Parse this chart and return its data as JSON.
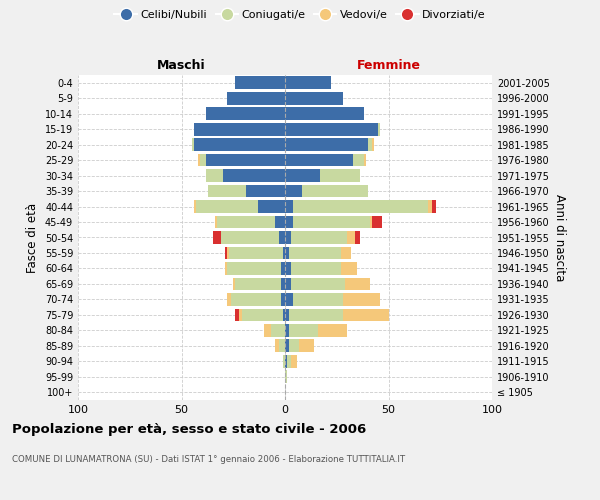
{
  "age_groups": [
    "100+",
    "95-99",
    "90-94",
    "85-89",
    "80-84",
    "75-79",
    "70-74",
    "65-69",
    "60-64",
    "55-59",
    "50-54",
    "45-49",
    "40-44",
    "35-39",
    "30-34",
    "25-29",
    "20-24",
    "15-19",
    "10-14",
    "5-9",
    "0-4"
  ],
  "birth_years": [
    "≤ 1905",
    "1906-1910",
    "1911-1915",
    "1916-1920",
    "1921-1925",
    "1926-1930",
    "1931-1935",
    "1936-1940",
    "1941-1945",
    "1946-1950",
    "1951-1955",
    "1956-1960",
    "1961-1965",
    "1966-1970",
    "1971-1975",
    "1976-1980",
    "1981-1985",
    "1986-1990",
    "1991-1995",
    "1996-2000",
    "2001-2005"
  ],
  "male_celibi": [
    0,
    0,
    0,
    0,
    0,
    1,
    2,
    2,
    2,
    1,
    3,
    5,
    13,
    19,
    30,
    38,
    44,
    44,
    38,
    28,
    24
  ],
  "male_coniugati": [
    0,
    0,
    1,
    3,
    7,
    20,
    24,
    22,
    26,
    26,
    28,
    28,
    30,
    18,
    8,
    3,
    1,
    0,
    0,
    0,
    0
  ],
  "male_vedovi": [
    0,
    0,
    0,
    2,
    3,
    1,
    2,
    1,
    1,
    1,
    0,
    1,
    1,
    0,
    0,
    1,
    0,
    0,
    0,
    0,
    0
  ],
  "male_divorziati": [
    0,
    0,
    0,
    0,
    0,
    2,
    0,
    0,
    0,
    1,
    4,
    0,
    0,
    0,
    0,
    0,
    0,
    0,
    0,
    0,
    0
  ],
  "female_celibi": [
    0,
    0,
    1,
    2,
    2,
    2,
    4,
    3,
    3,
    2,
    3,
    4,
    4,
    8,
    17,
    33,
    40,
    45,
    38,
    28,
    22
  ],
  "female_coniugati": [
    0,
    1,
    2,
    5,
    14,
    26,
    24,
    26,
    24,
    25,
    27,
    37,
    65,
    32,
    19,
    5,
    2,
    1,
    0,
    0,
    0
  ],
  "female_vedovi": [
    0,
    0,
    3,
    7,
    14,
    22,
    18,
    12,
    8,
    5,
    4,
    1,
    2,
    0,
    0,
    1,
    1,
    0,
    0,
    0,
    0
  ],
  "female_divorziati": [
    0,
    0,
    0,
    0,
    0,
    0,
    0,
    0,
    0,
    0,
    2,
    5,
    2,
    0,
    0,
    0,
    0,
    0,
    0,
    0,
    0
  ],
  "color_celibi": "#3d6da8",
  "color_coniugati": "#c8d9a0",
  "color_vedovi": "#f5c87a",
  "color_divorziati": "#d93030",
  "title": "Popolazione per età, sesso e stato civile - 2006",
  "subtitle": "COMUNE DI LUNAMATRONA (SU) - Dati ISTAT 1° gennaio 2006 - Elaborazione TUTTITALIA.IT",
  "xlabel_left": "Maschi",
  "xlabel_right": "Femmine",
  "ylabel_left": "Fasce di età",
  "ylabel_right": "Anni di nascita",
  "xlim": 100,
  "background_color": "#f0f0f0",
  "plot_background": "#ffffff"
}
